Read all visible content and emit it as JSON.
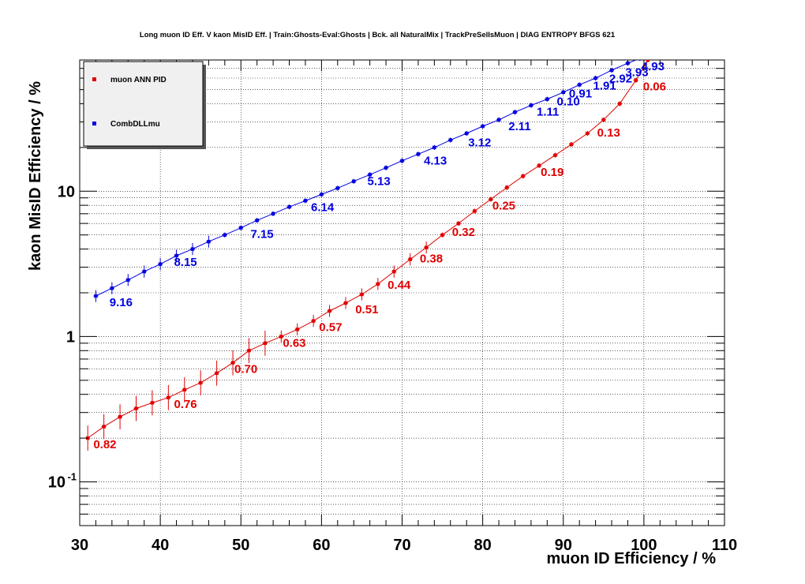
{
  "chart_data": {
    "type": "scatter",
    "title": "Long muon ID Eff. V kaon MisID Eff. | Train:Ghosts-Eval:Ghosts | Bck. all NaturalMix | TrackPreSelIsMuon | DIAG ENTROPY BFGS 621",
    "xlabel": "muon ID Efficiency / %",
    "ylabel": "kaon MisID Efficiency / %",
    "xlim": [
      30,
      110
    ],
    "ylim": [
      0.05,
      80
    ],
    "yscale": "log",
    "grid": true,
    "legend_position": "top-left",
    "x_ticks": [
      "30",
      "40",
      "50",
      "60",
      "70",
      "80",
      "90",
      "100",
      "110"
    ],
    "y_ticks": [
      {
        "value": 0.1,
        "label": "10",
        "exp": "-1"
      },
      {
        "value": 1,
        "label": "1",
        "exp": ""
      },
      {
        "value": 10,
        "label": "10",
        "exp": ""
      }
    ],
    "series": [
      {
        "name": "muon ANN PID",
        "color": "#e00000",
        "points": [
          [
            31,
            0.2
          ],
          [
            33,
            0.24
          ],
          [
            35,
            0.28
          ],
          [
            37,
            0.32
          ],
          [
            39,
            0.35
          ],
          [
            41,
            0.38
          ],
          [
            43,
            0.43
          ],
          [
            45,
            0.48
          ],
          [
            47,
            0.56
          ],
          [
            49,
            0.66
          ],
          [
            51,
            0.8
          ],
          [
            53,
            0.9
          ],
          [
            55,
            1.0
          ],
          [
            57,
            1.12
          ],
          [
            59,
            1.28
          ],
          [
            61,
            1.5
          ],
          [
            63,
            1.7
          ],
          [
            65,
            1.95
          ],
          [
            67,
            2.3
          ],
          [
            69,
            2.8
          ],
          [
            71,
            3.4
          ],
          [
            73,
            4.1
          ],
          [
            75,
            5.0
          ],
          [
            77,
            6.0
          ],
          [
            79,
            7.3
          ],
          [
            81,
            8.8
          ],
          [
            83,
            10.6
          ],
          [
            85,
            12.7
          ],
          [
            87,
            15
          ],
          [
            89,
            17.7
          ],
          [
            91,
            21
          ],
          [
            93,
            25
          ],
          [
            95,
            31
          ],
          [
            97,
            40
          ],
          [
            99,
            58
          ],
          [
            100.5,
            80
          ]
        ],
        "cut_labels": [
          {
            "x": 31.5,
            "y": 0.2,
            "text": "0.82"
          },
          {
            "x": 41.5,
            "y": 0.38,
            "text": "0.76"
          },
          {
            "x": 49,
            "y": 0.66,
            "text": "0.70"
          },
          {
            "x": 55,
            "y": 1.0,
            "text": "0.63"
          },
          {
            "x": 59.5,
            "y": 1.28,
            "text": "0.57"
          },
          {
            "x": 64,
            "y": 1.7,
            "text": "0.51"
          },
          {
            "x": 68,
            "y": 2.5,
            "text": "0.44"
          },
          {
            "x": 72,
            "y": 3.8,
            "text": "0.38"
          },
          {
            "x": 76,
            "y": 5.8,
            "text": "0.32"
          },
          {
            "x": 81,
            "y": 8.8,
            "text": "0.25"
          },
          {
            "x": 87,
            "y": 15,
            "text": "0.19"
          },
          {
            "x": 94,
            "y": 28,
            "text": "0.13"
          },
          {
            "x": 99.7,
            "y": 58,
            "text": "0.06"
          }
        ]
      },
      {
        "name": "CombDLLmu",
        "color": "#0000e0",
        "points": [
          [
            32,
            1.9
          ],
          [
            34,
            2.15
          ],
          [
            36,
            2.45
          ],
          [
            38,
            2.8
          ],
          [
            40,
            3.15
          ],
          [
            42,
            3.6
          ],
          [
            44,
            4.0
          ],
          [
            46,
            4.5
          ],
          [
            48,
            5.0
          ],
          [
            50,
            5.6
          ],
          [
            52,
            6.3
          ],
          [
            54,
            7.0
          ],
          [
            56,
            7.8
          ],
          [
            58,
            8.6
          ],
          [
            60,
            9.5
          ],
          [
            62,
            10.5
          ],
          [
            64,
            11.7
          ],
          [
            66,
            13.0
          ],
          [
            68,
            14.5
          ],
          [
            70,
            16.2
          ],
          [
            72,
            18.0
          ],
          [
            74,
            20.0
          ],
          [
            76,
            22.5
          ],
          [
            78,
            25
          ],
          [
            80,
            28
          ],
          [
            82,
            31
          ],
          [
            84,
            35
          ],
          [
            86,
            39
          ],
          [
            88,
            43
          ],
          [
            90,
            48
          ],
          [
            92,
            54
          ],
          [
            94,
            60
          ],
          [
            96,
            68
          ],
          [
            98,
            76
          ],
          [
            99.5,
            82
          ]
        ],
        "cut_labels": [
          {
            "x": 33.5,
            "y": 1.9,
            "text": "9.16"
          },
          {
            "x": 41.5,
            "y": 3.6,
            "text": "8.15"
          },
          {
            "x": 51,
            "y": 5.6,
            "text": "7.15"
          },
          {
            "x": 58.5,
            "y": 8.6,
            "text": "6.14"
          },
          {
            "x": 65.5,
            "y": 13.0,
            "text": "5.13"
          },
          {
            "x": 72.5,
            "y": 18.0,
            "text": "4.13"
          },
          {
            "x": 78,
            "y": 24,
            "text": "3.12"
          },
          {
            "x": 83,
            "y": 31,
            "text": "2.11"
          },
          {
            "x": 86.5,
            "y": 39,
            "text": "1.11"
          },
          {
            "x": 89,
            "y": 46,
            "text": "0.10"
          },
          {
            "x": 90.5,
            "y": 52,
            "text": "0.91"
          },
          {
            "x": 93.5,
            "y": 59,
            "text": "1.91"
          },
          {
            "x": 95.5,
            "y": 66,
            "text": "2.92"
          },
          {
            "x": 97.5,
            "y": 73,
            "text": "3.93"
          },
          {
            "x": 99.5,
            "y": 80,
            "text": "4.93"
          }
        ]
      }
    ]
  }
}
